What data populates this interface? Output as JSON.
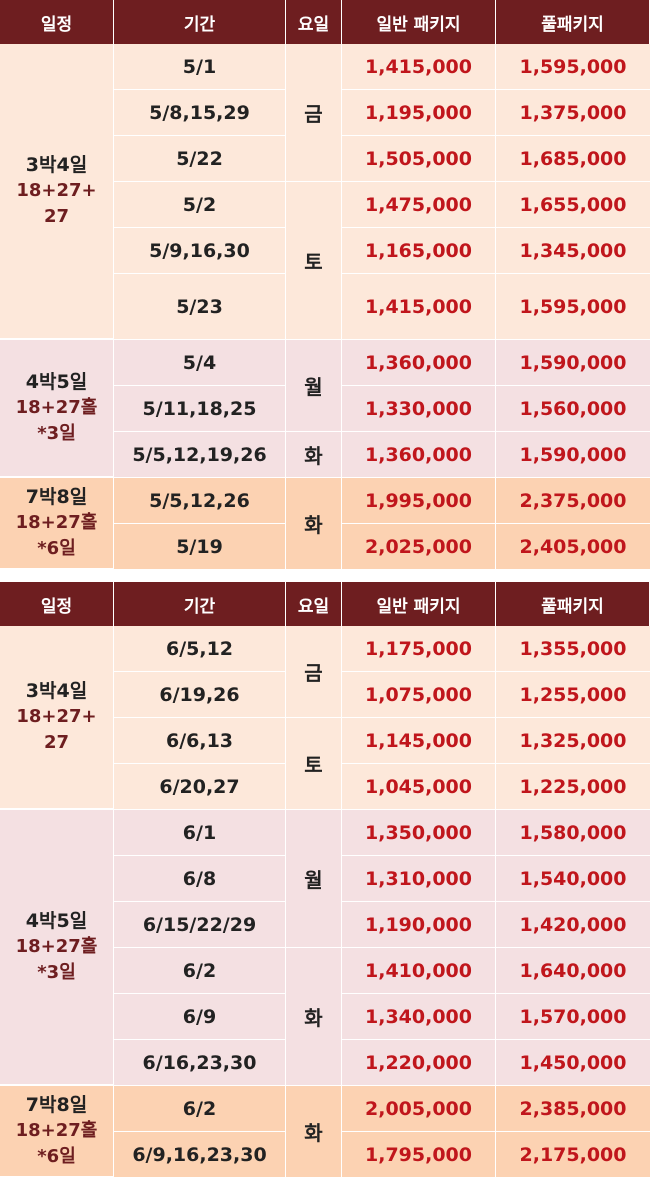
{
  "headers": [
    "일정",
    "기간",
    "요일",
    "일반 패키지",
    "풀패키지"
  ],
  "may": {
    "groups": [
      {
        "schedule": [
          "3박4일",
          "18+27+",
          "27"
        ],
        "days": [
          {
            "label": "금",
            "rows": [
              {
                "period": "5/1",
                "basic": "1,415,000",
                "full": "1,595,000"
              },
              {
                "period": "5/8,15,29",
                "basic": "1,195,000",
                "full": "1,375,000"
              },
              {
                "period": "5/22",
                "basic": "1,505,000",
                "full": "1,685,000"
              }
            ]
          },
          {
            "label": "토",
            "rows": [
              {
                "period": "5/2",
                "basic": "1,475,000",
                "full": "1,655,000"
              },
              {
                "period": "5/9,16,30",
                "basic": "1,165,000",
                "full": "1,345,000"
              },
              {
                "period": "5/23",
                "basic": "1,415,000",
                "full": "1,595,000"
              }
            ]
          }
        ]
      },
      {
        "schedule": [
          "4박5일",
          "18+27홀",
          "*3일"
        ],
        "days": [
          {
            "label": "월",
            "rows": [
              {
                "period": "5/4",
                "basic": "1,360,000",
                "full": "1,590,000"
              },
              {
                "period": "5/11,18,25",
                "basic": "1,330,000",
                "full": "1,560,000"
              }
            ]
          },
          {
            "label": "화",
            "rows": [
              {
                "period": "5/5,12,19,26",
                "basic": "1,360,000",
                "full": "1,590,000"
              }
            ]
          }
        ]
      },
      {
        "schedule": [
          "7박8일",
          "18+27홀",
          "*6일"
        ],
        "days": [
          {
            "label": "화",
            "rows": [
              {
                "period": "5/5,12,26",
                "basic": "1,995,000",
                "full": "2,375,000"
              },
              {
                "period": "5/19",
                "basic": "2,025,000",
                "full": "2,405,000"
              }
            ]
          }
        ]
      }
    ]
  },
  "june": {
    "groups": [
      {
        "schedule": [
          "3박4일",
          "18+27+",
          "27"
        ],
        "days": [
          {
            "label": "금",
            "rows": [
              {
                "period": "6/5,12",
                "basic": "1,175,000",
                "full": "1,355,000"
              },
              {
                "period": "6/19,26",
                "basic": "1,075,000",
                "full": "1,255,000"
              }
            ]
          },
          {
            "label": "토",
            "rows": [
              {
                "period": "6/6,13",
                "basic": "1,145,000",
                "full": "1,325,000"
              },
              {
                "period": "6/20,27",
                "basic": "1,045,000",
                "full": "1,225,000"
              }
            ]
          }
        ]
      },
      {
        "schedule": [
          "4박5일",
          "18+27홀",
          "*3일"
        ],
        "days": [
          {
            "label": "월",
            "rows": [
              {
                "period": "6/1",
                "basic": "1,350,000",
                "full": "1,580,000"
              },
              {
                "period": "6/8",
                "basic": "1,310,000",
                "full": "1,540,000"
              },
              {
                "period": "6/15/22/29",
                "basic": "1,190,000",
                "full": "1,420,000"
              }
            ]
          },
          {
            "label": "화",
            "rows": [
              {
                "period": "6/2",
                "basic": "1,410,000",
                "full": "1,640,000"
              },
              {
                "period": "6/9",
                "basic": "1,340,000",
                "full": "1,570,000"
              },
              {
                "period": "6/16,23,30",
                "basic": "1,220,000",
                "full": "1,450,000"
              }
            ]
          }
        ]
      },
      {
        "schedule": [
          "7박8일",
          "18+27홀",
          "*6일"
        ],
        "days": [
          {
            "label": "화",
            "rows": [
              {
                "period": "6/2",
                "basic": "2,005,000",
                "full": "2,385,000"
              },
              {
                "period": "6/9,16,23,30",
                "basic": "1,795,000",
                "full": "2,175,000"
              }
            ]
          }
        ]
      }
    ]
  }
}
